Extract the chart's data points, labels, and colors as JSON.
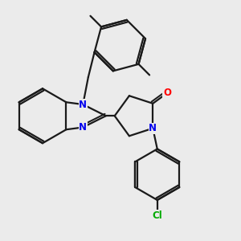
{
  "bg_color": "#ebebeb",
  "bond_color": "#1a1a1a",
  "bond_width": 1.6,
  "atom_colors": {
    "N": "#0000ee",
    "O": "#ff0000",
    "Cl": "#00aa00",
    "C": "#1a1a1a"
  },
  "font_size_atom": 8.5,
  "figsize": [
    3.0,
    3.0
  ],
  "dpi": 100
}
